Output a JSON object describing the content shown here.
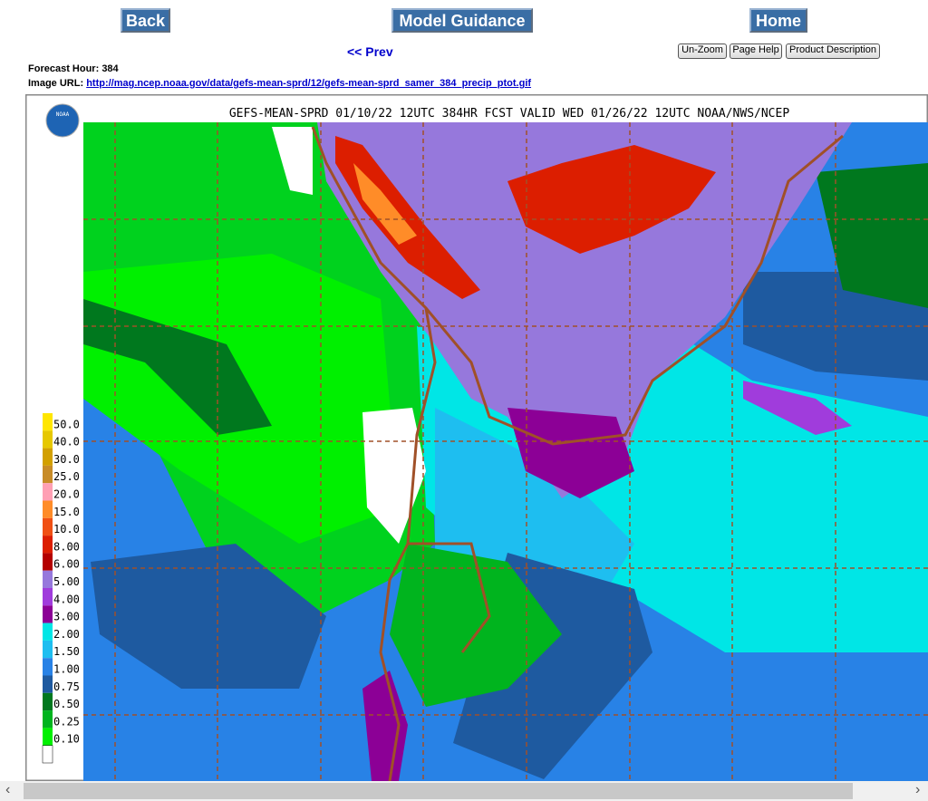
{
  "nav": {
    "back": "Back",
    "model_guidance": "Model Guidance",
    "home": "Home",
    "prev": "<< Prev"
  },
  "buttons": [
    "Un-Zoom",
    "Page Help",
    "Product Description"
  ],
  "info": {
    "forecast_hour_label": "Forecast Hour:",
    "forecast_hour": "384",
    "image_url_label": "Image URL:",
    "image_url": "http://mag.ncep.noaa.gov/data/gefs-mean-sprd/12/gefs-mean-sprd_samer_384_precip_ptot.gif"
  },
  "map": {
    "title": "GEFS-MEAN-SPRD 01/10/22 12UTC 384HR FCST VALID WED 01/26/22 12UTC NOAA/NWS/NCEP",
    "logo": "NOAA",
    "legend": [
      {
        "label": "50.0",
        "color": "#ffe600"
      },
      {
        "label": "40.0",
        "color": "#e6c800"
      },
      {
        "label": "30.0",
        "color": "#d2a000"
      },
      {
        "label": "25.0",
        "color": "#c88c28"
      },
      {
        "label": "20.0",
        "color": "#ffa0b4"
      },
      {
        "label": "15.0",
        "color": "#ff8c28"
      },
      {
        "label": "10.0",
        "color": "#f05014"
      },
      {
        "label": "8.00",
        "color": "#dc1e00"
      },
      {
        "label": "6.00",
        "color": "#b40000"
      },
      {
        "label": "5.00",
        "color": "#9678dc"
      },
      {
        "label": "4.00",
        "color": "#a03cdc"
      },
      {
        "label": "3.00",
        "color": "#8c0096"
      },
      {
        "label": "2.00",
        "color": "#00e6e6"
      },
      {
        "label": "1.50",
        "color": "#1ebef0"
      },
      {
        "label": "1.00",
        "color": "#2882e6"
      },
      {
        "label": "0.75",
        "color": "#1e5aa0"
      },
      {
        "label": "0.50",
        "color": "#00781e"
      },
      {
        "label": "0.25",
        "color": "#00b41e"
      },
      {
        "label": "0.10",
        "color": "#00f000"
      }
    ]
  }
}
